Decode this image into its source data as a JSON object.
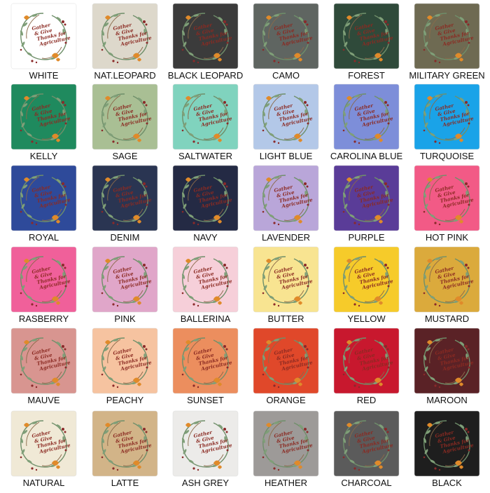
{
  "design": {
    "lines": [
      "Gather",
      "& Give",
      "Thanks for",
      "Agriculture"
    ]
  },
  "swatches": [
    {
      "name": "WHITE",
      "color": "#ffffff"
    },
    {
      "name": "NAT.LEOPARD",
      "color": "#ddd8cb"
    },
    {
      "name": "BLACK LEOPARD",
      "color": "#3b3b3b"
    },
    {
      "name": "CAMO",
      "color": "#5f6561"
    },
    {
      "name": "FOREST",
      "color": "#2f4a3a"
    },
    {
      "name": "MILITARY GREEN",
      "color": "#6e6a52"
    },
    {
      "name": "KELLY",
      "color": "#1f8a5e"
    },
    {
      "name": "SAGE",
      "color": "#a9bf94"
    },
    {
      "name": "SALTWATER",
      "color": "#80d3be"
    },
    {
      "name": "LIGHT BLUE",
      "color": "#b3c8e8"
    },
    {
      "name": "CAROLINA BLUE",
      "color": "#7d8ed9"
    },
    {
      "name": "TURQUOISE",
      "color": "#1aa3e8"
    },
    {
      "name": "ROYAL",
      "color": "#2e4a9a"
    },
    {
      "name": "DENIM",
      "color": "#2a3552"
    },
    {
      "name": "NAVY",
      "color": "#242a44"
    },
    {
      "name": "LAVENDER",
      "color": "#b9a6d9"
    },
    {
      "name": "PURPLE",
      "color": "#5a3c98"
    },
    {
      "name": "HOT PINK",
      "color": "#f25a86"
    },
    {
      "name": "RASBERRY",
      "color": "#f0609a"
    },
    {
      "name": "PINK",
      "color": "#e0a6c9"
    },
    {
      "name": "BALLERINA",
      "color": "#f6cfd9"
    },
    {
      "name": "BUTTER",
      "color": "#f8e491"
    },
    {
      "name": "YELLOW",
      "color": "#f6cb2a"
    },
    {
      "name": "MUSTARD",
      "color": "#dbaa3c"
    },
    {
      "name": "MAUVE",
      "color": "#d89590"
    },
    {
      "name": "PEACHY",
      "color": "#f6c3a0"
    },
    {
      "name": "SUNSET",
      "color": "#ec8e5e"
    },
    {
      "name": "ORANGE",
      "color": "#e0482a"
    },
    {
      "name": "RED",
      "color": "#c8182e"
    },
    {
      "name": "MAROON",
      "color": "#5a2226"
    },
    {
      "name": "NATURAL",
      "color": "#f0e9d6"
    },
    {
      "name": "LATTE",
      "color": "#d2b488"
    },
    {
      "name": "ASH GREY",
      "color": "#ecebe9"
    },
    {
      "name": "HEATHER",
      "color": "#9d9a98"
    },
    {
      "name": "CHARCOAL",
      "color": "#5b5b5b"
    },
    {
      "name": "BLACK",
      "color": "#1e1e1e"
    }
  ]
}
